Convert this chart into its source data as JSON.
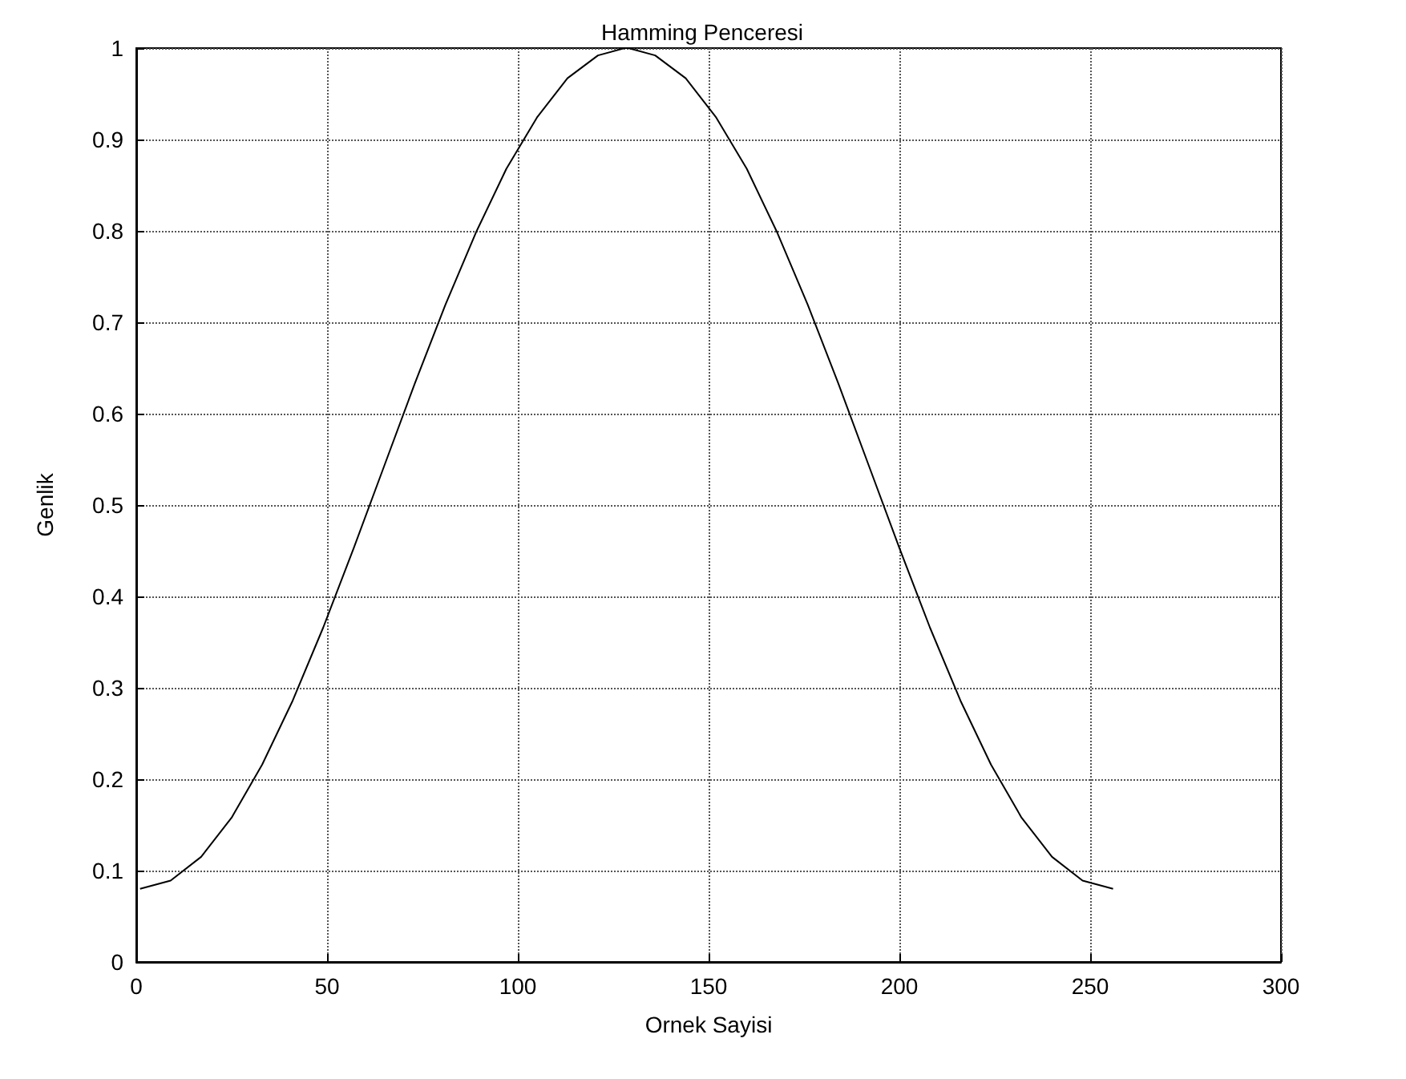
{
  "chart_data": {
    "type": "line",
    "title": "Hamming Penceresi",
    "xlabel": "Ornek Sayisi",
    "ylabel": "Genlik",
    "x": [
      1,
      9,
      17,
      25,
      33,
      41,
      49,
      57,
      65,
      73,
      81,
      89,
      97,
      105,
      113,
      121,
      128,
      129,
      136,
      144,
      152,
      160,
      168,
      176,
      184,
      192,
      200,
      208,
      216,
      224,
      232,
      240,
      248,
      256
    ],
    "series": [
      {
        "color": "#000000",
        "values": [
          0.08,
          0.089,
          0.115,
          0.158,
          0.216,
          0.286,
          0.366,
          0.453,
          0.543,
          0.633,
          0.719,
          0.798,
          0.868,
          0.924,
          0.967,
          0.992,
          1.0,
          1.0,
          0.992,
          0.967,
          0.924,
          0.868,
          0.798,
          0.719,
          0.633,
          0.543,
          0.453,
          0.366,
          0.286,
          0.216,
          0.158,
          0.115,
          0.089,
          0.08
        ]
      }
    ],
    "xlim": [
      0,
      300
    ],
    "xticks": [
      0,
      50,
      100,
      150,
      200,
      250,
      300
    ],
    "ylim": [
      0,
      1
    ],
    "yticks": [
      0,
      0.1,
      0.2,
      0.3,
      0.4,
      0.5,
      0.6,
      0.7,
      0.8,
      0.9,
      1
    ],
    "grid": true,
    "line_style": "solid",
    "marker": "none"
  }
}
